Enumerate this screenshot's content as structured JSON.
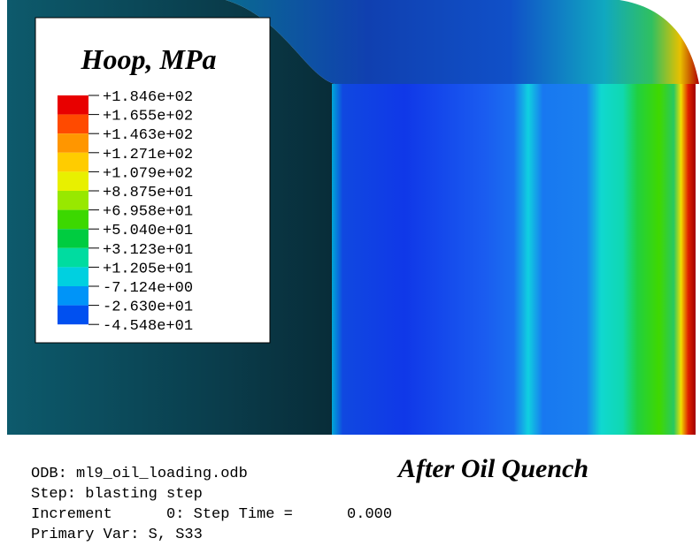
{
  "legend": {
    "title": "Hoop, MPa",
    "labels": [
      "+1.846e+02",
      "+1.655e+02",
      "+1.463e+02",
      "+1.271e+02",
      "+1.079e+02",
      "+8.875e+01",
      "+6.958e+01",
      "+5.040e+01",
      "+3.123e+01",
      "+1.205e+01",
      "-7.124e+00",
      "-2.630e+01",
      "-4.548e+01"
    ],
    "colors": [
      "#e80000",
      "#ff4a00",
      "#ff9600",
      "#ffcc00",
      "#e8f000",
      "#98e800",
      "#3cd800",
      "#00cc40",
      "#00dca0",
      "#00d0e0",
      "#0094f8",
      "#0050f0"
    ]
  },
  "info": {
    "lines": [
      "ODB: ml9_oil_loading.odb",
      "Step: blasting step",
      "Increment      0: Step Time =      0.000",
      "Primary Var: S, S33"
    ],
    "caption": "After Oil Quench"
  }
}
